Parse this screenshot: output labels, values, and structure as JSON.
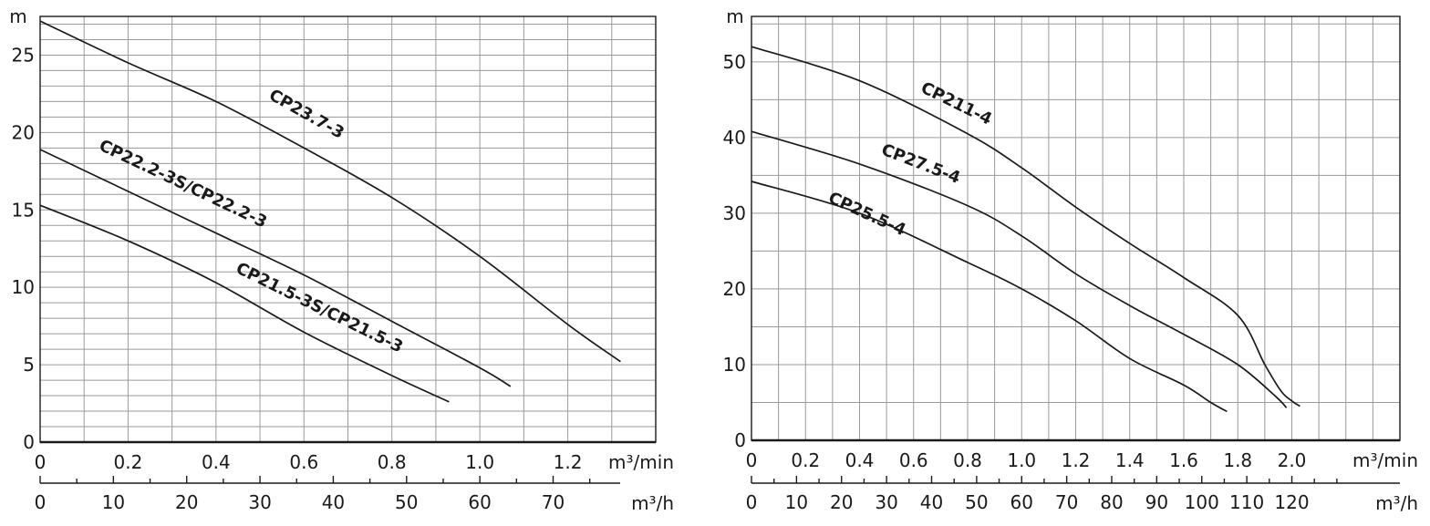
{
  "chart_data": [
    {
      "type": "line",
      "id": "left",
      "ylabel": "m",
      "xlabel": "m³/min",
      "x2label": "m³/h",
      "xlim": [
        0,
        1.4
      ],
      "ylim": [
        0,
        27.5
      ],
      "yticks": [
        0,
        5,
        10,
        15,
        20,
        25
      ],
      "ytick_labels": [
        "0",
        "5",
        "10",
        "15",
        "20",
        "25"
      ],
      "xticks": [
        0,
        0.2,
        0.4,
        0.6,
        0.8,
        1.0,
        1.2
      ],
      "xtick_labels": [
        "0",
        "0.2",
        "0.4",
        "0.6",
        "0.8",
        "1.0",
        "1.2"
      ],
      "x2ticks": [
        0,
        10,
        20,
        30,
        40,
        50,
        60,
        70
      ],
      "x2tick_labels": [
        "0",
        "10",
        "20",
        "30",
        "40",
        "50",
        "60",
        "70"
      ],
      "series": [
        {
          "name": "CP23.7-3",
          "x": [
            0,
            0.2,
            0.4,
            0.6,
            0.8,
            1.0,
            1.2,
            1.32
          ],
          "y": [
            27.2,
            24.5,
            22.0,
            19.0,
            15.8,
            12.0,
            7.6,
            5.2
          ],
          "label_at": 0.6,
          "label_offset": [
            0,
            -1.9
          ]
        },
        {
          "name": "CP22.2-3S/CP22.2-3",
          "x": [
            0,
            0.2,
            0.4,
            0.6,
            0.8,
            1.0,
            1.07
          ],
          "y": [
            18.9,
            16.2,
            13.5,
            10.8,
            7.8,
            4.8,
            3.6
          ],
          "label_at": 0.32,
          "label_offset": [
            0,
            -1.8
          ]
        },
        {
          "name": "CP21.5-3S/CP21.5-3",
          "x": [
            0,
            0.2,
            0.4,
            0.6,
            0.8,
            0.93
          ],
          "y": [
            15.3,
            13.0,
            10.3,
            7.1,
            4.3,
            2.6
          ],
          "label_at": 0.63,
          "label_offset": [
            0,
            -1.7
          ]
        }
      ]
    },
    {
      "type": "line",
      "id": "right",
      "ylabel": "m",
      "xlabel": "m³/min",
      "x2label": "m³/h",
      "xlim": [
        0,
        2.4
      ],
      "ylim": [
        0,
        56
      ],
      "yticks": [
        0,
        10,
        20,
        30,
        40,
        50
      ],
      "ytick_labels": [
        "0",
        "10",
        "20",
        "30",
        "40",
        "50"
      ],
      "xticks": [
        0,
        0.2,
        0.4,
        0.6,
        0.8,
        1.0,
        1.2,
        1.4,
        1.6,
        1.8,
        2.0
      ],
      "xtick_labels": [
        "0",
        "0.2",
        "0.4",
        "0.6",
        "0.8",
        "1.0",
        "1.2",
        "1.4",
        "1.6",
        "1.8",
        "2.0"
      ],
      "x2ticks": [
        0,
        10,
        20,
        30,
        40,
        50,
        60,
        70,
        80,
        90,
        100,
        110,
        120
      ],
      "x2tick_labels": [
        "0",
        "10",
        "20",
        "30",
        "40",
        "50",
        "60",
        "70",
        "80",
        "90",
        "100",
        "110",
        "120"
      ],
      "series": [
        {
          "name": "CP211-4",
          "x": [
            0,
            0.4,
            0.8,
            1.0,
            1.2,
            1.4,
            1.6,
            1.8,
            1.9,
            1.96,
            2.0,
            2.03
          ],
          "y": [
            52.0,
            47.5,
            40.5,
            36.0,
            30.8,
            26.0,
            21.5,
            16.5,
            10.0,
            6.5,
            5.2,
            4.5
          ],
          "label_at": 0.75,
          "label_offset": [
            0,
            -2.5
          ]
        },
        {
          "name": "CP27.5-4",
          "x": [
            0,
            0.4,
            0.8,
            1.0,
            1.2,
            1.4,
            1.6,
            1.8,
            1.94,
            1.98
          ],
          "y": [
            40.8,
            36.5,
            31.0,
            27.0,
            22.0,
            17.8,
            14.0,
            10.0,
            5.8,
            4.3
          ],
          "label_at": 0.62,
          "label_offset": [
            0,
            -2.4
          ]
        },
        {
          "name": "CP25.5-4",
          "x": [
            0,
            0.4,
            0.8,
            1.0,
            1.2,
            1.4,
            1.6,
            1.7,
            1.76
          ],
          "y": [
            34.2,
            30.0,
            23.5,
            20.0,
            15.8,
            10.8,
            7.3,
            5.0,
            3.8
          ],
          "label_at": 0.42,
          "label_offset": [
            0,
            0.4
          ]
        }
      ]
    }
  ]
}
